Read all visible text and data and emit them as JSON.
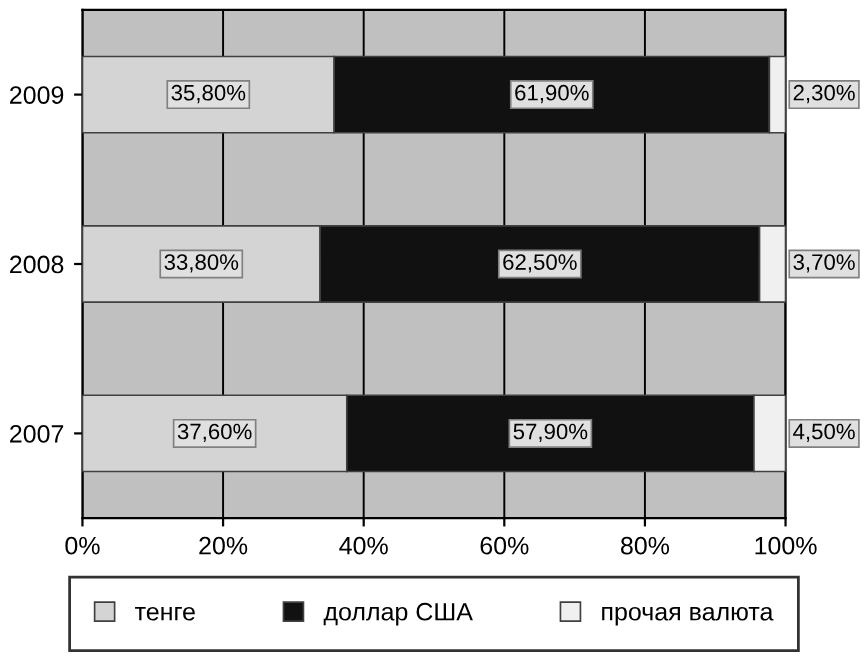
{
  "chart_data": {
    "type": "bar",
    "orientation": "horizontal",
    "stacked": true,
    "categories": [
      "2009",
      "2008",
      "2007"
    ],
    "series": [
      {
        "name": "тенге",
        "color": "#d4d4d4",
        "values": [
          35.8,
          33.8,
          37.6
        ],
        "value_labels": [
          "35,80%",
          "33,80%",
          "37,60%"
        ]
      },
      {
        "name": "доллар США",
        "color": "#111111",
        "values": [
          61.9,
          62.5,
          57.9
        ],
        "value_labels": [
          "61,90%",
          "62,50%",
          "57,90%"
        ]
      },
      {
        "name": "прочая валюта",
        "color": "#f0f0f0",
        "values": [
          2.3,
          3.7,
          4.5
        ],
        "value_labels": [
          "2,30%",
          "3,70%",
          "4,50%"
        ]
      }
    ],
    "xlim": [
      0,
      100
    ],
    "xticks": [
      {
        "value": 0,
        "label": "0%"
      },
      {
        "value": 20,
        "label": "20%"
      },
      {
        "value": 40,
        "label": "40%"
      },
      {
        "value": 60,
        "label": "60%"
      },
      {
        "value": 80,
        "label": "80%"
      },
      {
        "value": 100,
        "label": "100%"
      }
    ],
    "grid": "x",
    "legend": "bottom"
  }
}
